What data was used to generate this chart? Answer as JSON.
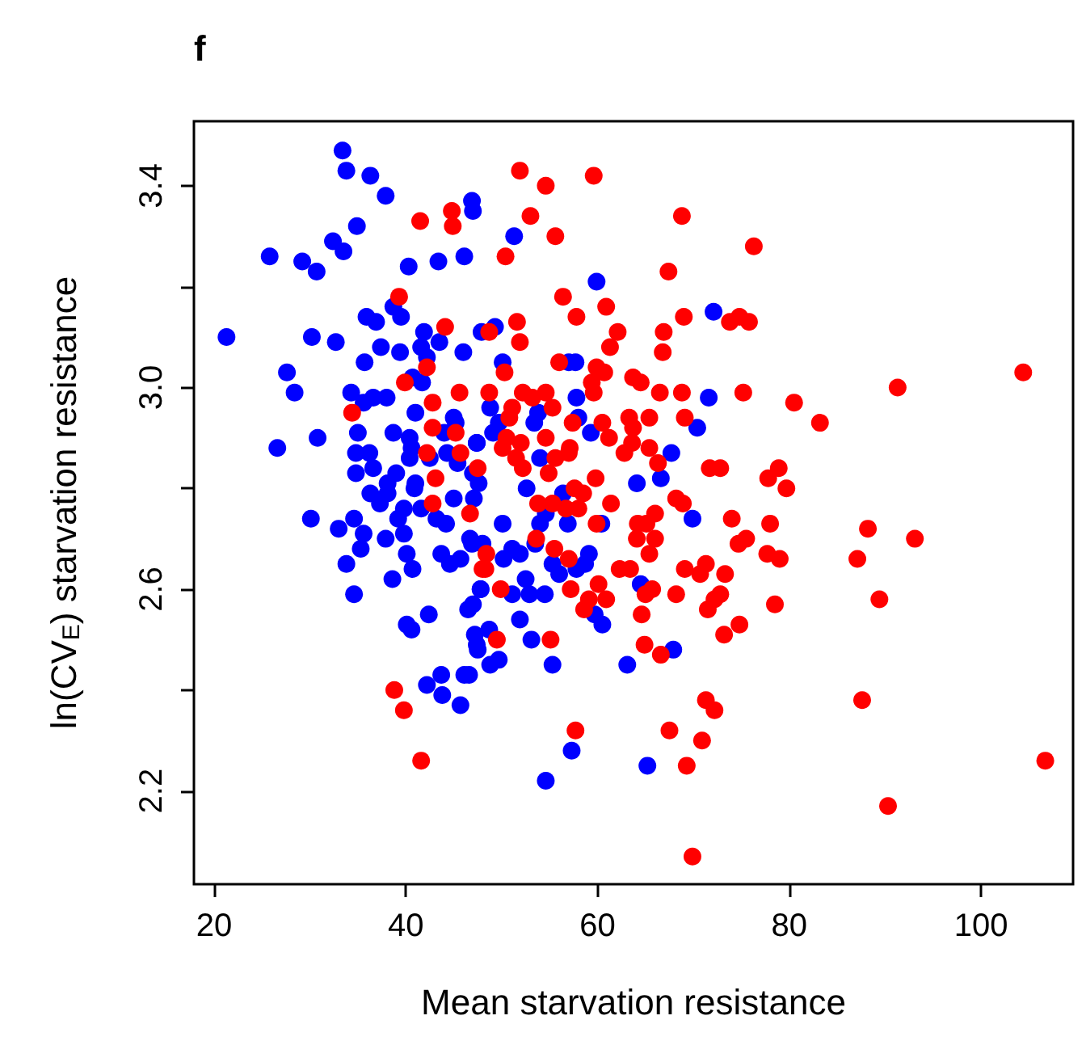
{
  "chart_data": {
    "type": "scatter",
    "title": "f",
    "xlabel": "Mean starvation resistance",
    "ylabel": "ln(CV$_{E}$) starvation resistance",
    "xlim": [
      17.9,
      109.6
    ],
    "ylim": [
      2.015,
      3.528
    ],
    "xticks": [
      20,
      40,
      60,
      80,
      100
    ],
    "yticks": [
      2.2,
      {
        "value": 2.4,
        "label": null
      },
      2.6,
      {
        "value": 2.8,
        "label": null
      },
      {
        "value": 3,
        "label": "3.0"
      },
      {
        "value": 3.2,
        "label": null
      },
      3.4
    ],
    "grid": false,
    "marker": "circle",
    "series": [
      {
        "color": "#0000ff",
        "x": [
          33.4,
          33.8,
          36.3,
          37.9,
          46.9,
          47.0,
          34.9,
          32.4,
          33.5,
          25.8,
          29.2,
          30.7,
          40.3,
          43.4,
          46.1,
          21.3,
          30.2,
          32.7,
          35.9,
          36.9,
          39.5,
          38.7,
          37.4,
          39.4,
          35.7,
          41.9,
          41.6,
          43.5,
          42.2,
          46.0,
          47.9,
          27.6,
          28.4,
          34.3,
          35.6,
          36.6,
          38.0,
          40.7,
          41.7,
          41.0,
          35.0,
          38.7,
          26.6,
          30.8,
          40.4,
          40.6,
          45.0,
          45.2,
          47.4,
          44.0,
          34.8,
          36.2,
          40.4,
          42.5,
          44.3,
          45.4,
          34.8,
          36.6,
          39.0,
          47.0,
          41.0,
          38.1,
          51.3,
          59.9,
          72.1,
          49.3,
          50.1,
          57.0,
          57.7,
          57.8,
          71.6,
          48.8,
          53.8,
          53.4,
          49.7,
          49.1,
          58.0,
          59.3,
          70.4,
          47.4,
          54.0,
          67.7,
          66.6,
          64.1,
          47.6,
          52.6,
          56.4,
          54.6,
          54.0,
          56.9,
          60.4,
          69.9,
          50.1,
          48.0,
          46.9,
          51.1,
          51.9,
          50.2,
          53.5,
          55.3,
          56.0,
          57.8,
          59.1,
          58.7,
          52.5,
          47.8,
          51.1,
          52.9,
          54.5,
          47.0,
          64.5,
          59.7,
          60.5,
          51.9,
          48.7,
          47.4,
          53.1,
          49.7,
          48.8,
          55.3,
          63.1,
          67.9,
          46.6,
          57.3,
          65.2,
          54.6,
          30.1,
          33.0,
          34.6,
          35.6,
          35.3,
          33.8,
          37.9,
          39.8,
          40.1,
          39.2,
          38.6,
          40.7,
          34.6,
          36.3,
          37.3,
          38.1,
          39.8,
          41.6,
          40.9,
          43.2,
          44.2,
          45.0,
          47.1,
          43.7,
          44.6,
          45.7,
          46.7,
          47.8,
          46.5,
          42.4,
          40.1,
          40.6,
          47.2,
          47.5,
          46.1,
          43.7,
          42.2,
          43.8,
          45.7
        ],
        "values": [
          3.47,
          3.43,
          3.42,
          3.38,
          3.37,
          3.35,
          3.32,
          3.29,
          3.27,
          3.26,
          3.25,
          3.23,
          3.24,
          3.25,
          3.26,
          3.1,
          3.1,
          3.09,
          3.14,
          3.13,
          3.14,
          3.16,
          3.08,
          3.07,
          3.05,
          3.11,
          3.08,
          3.09,
          3.06,
          3.07,
          3.11,
          3.03,
          2.99,
          2.99,
          2.97,
          2.98,
          2.98,
          3.02,
          3.01,
          2.95,
          2.91,
          2.91,
          2.88,
          2.9,
          2.9,
          2.88,
          2.94,
          2.93,
          2.89,
          2.91,
          2.87,
          2.87,
          2.86,
          2.86,
          2.87,
          2.85,
          2.83,
          2.84,
          2.83,
          2.83,
          2.81,
          2.81,
          3.3,
          3.21,
          3.15,
          3.12,
          3.05,
          3.05,
          3.05,
          2.98,
          2.98,
          2.96,
          2.95,
          2.93,
          2.93,
          2.91,
          2.94,
          2.91,
          2.92,
          2.89,
          2.86,
          2.87,
          2.82,
          2.81,
          2.81,
          2.8,
          2.79,
          2.75,
          2.73,
          2.73,
          2.73,
          2.74,
          2.73,
          2.69,
          2.69,
          2.68,
          2.67,
          2.66,
          2.69,
          2.65,
          2.63,
          2.64,
          2.67,
          2.65,
          2.62,
          2.6,
          2.59,
          2.59,
          2.59,
          2.57,
          2.61,
          2.55,
          2.53,
          2.54,
          2.52,
          2.49,
          2.5,
          2.46,
          2.45,
          2.45,
          2.45,
          2.48,
          2.43,
          2.28,
          2.25,
          2.22,
          2.74,
          2.72,
          2.74,
          2.71,
          2.68,
          2.65,
          2.7,
          2.71,
          2.67,
          2.74,
          2.62,
          2.64,
          2.59,
          2.79,
          2.77,
          2.79,
          2.76,
          2.76,
          2.8,
          2.74,
          2.73,
          2.78,
          2.78,
          2.67,
          2.65,
          2.66,
          2.7,
          2.6,
          2.56,
          2.55,
          2.53,
          2.52,
          2.51,
          2.48,
          2.43,
          2.43,
          2.41,
          2.39,
          2.37
        ]
      },
      {
        "color": "#ff0000",
        "x": [
          41.5,
          44.8,
          44.9,
          39.3,
          44.1,
          42.2,
          39.9,
          45.6,
          42.8,
          34.4,
          42.8,
          45.2,
          42.2,
          45.7,
          43.1,
          47.5,
          51.9,
          54.6,
          59.6,
          53.0,
          55.6,
          50.4,
          68.8,
          76.3,
          67.4,
          56.4,
          60.9,
          57.8,
          69.0,
          73.8,
          74.8,
          75.8,
          51.6,
          51.9,
          62.1,
          61.3,
          66.9,
          66.8,
          48.7,
          50.3,
          56.0,
          59.9,
          60.7,
          59.4,
          59.6,
          63.7,
          64.5,
          48.7,
          52.2,
          53.2,
          54.6,
          55.3,
          51.1,
          50.8,
          57.4,
          60.5,
          63.3,
          65.4,
          66.5,
          68.8,
          69.1,
          75.2,
          50.5,
          54.6,
          52.0,
          50.1,
          57.1,
          61.2,
          63.7,
          63.6,
          65.4,
          51.5,
          55.6,
          57.0,
          62.8,
          66.3,
          52.2,
          54.9,
          59.8,
          71.7,
          72.8,
          77.8,
          57.6,
          104.4,
          91.3,
          80.5,
          83.2,
          78.9,
          79.7,
          78.0,
          88.2,
          93.1,
          77.7,
          79.0,
          87.1,
          89.4,
          78.5,
          87.6,
          106.7,
          90.3,
          61.4,
          68.2,
          68.9,
          74.0,
          64.2,
          66.0,
          65.1,
          66.0,
          64.1,
          65.4,
          74.7,
          75.5,
          59.9,
          53.8,
          55.3,
          56.7,
          58.0,
          58.5,
          53.6,
          55.5,
          57.0,
          48.3,
          48.4,
          49.9,
          57.2,
          60.1,
          60.9,
          58.6,
          59.1,
          62.3,
          63.4,
          65.7,
          65.0,
          64.6,
          68.2,
          69.1,
          70.7,
          71.3,
          73.3,
          71.5,
          72.2,
          72.8,
          74.8,
          73.2,
          49.5,
          55.1,
          64.9,
          66.6,
          71.3,
          72.2,
          57.7,
          67.5,
          70.9,
          69.3,
          69.9,
          42.8,
          46.7,
          48.0,
          38.8,
          39.8,
          41.6
        ],
        "values": [
          3.33,
          3.35,
          3.32,
          3.18,
          3.12,
          3.04,
          3.01,
          2.99,
          2.97,
          2.95,
          2.92,
          2.91,
          2.87,
          2.87,
          2.82,
          2.84,
          3.43,
          3.4,
          3.42,
          3.34,
          3.3,
          3.26,
          3.34,
          3.28,
          3.23,
          3.18,
          3.16,
          3.14,
          3.14,
          3.13,
          3.14,
          3.13,
          3.13,
          3.09,
          3.11,
          3.08,
          3.11,
          3.07,
          3.11,
          3.03,
          3.05,
          3.04,
          3.03,
          3.01,
          2.99,
          3.02,
          3.01,
          2.99,
          2.99,
          2.98,
          2.99,
          2.96,
          2.96,
          2.94,
          2.93,
          2.93,
          2.94,
          2.94,
          2.99,
          2.99,
          2.94,
          2.99,
          2.9,
          2.9,
          2.89,
          2.88,
          2.88,
          2.9,
          2.92,
          2.89,
          2.88,
          2.86,
          2.86,
          2.87,
          2.87,
          2.85,
          2.84,
          2.83,
          2.82,
          2.84,
          2.84,
          2.82,
          2.8,
          3.03,
          3.0,
          2.97,
          2.93,
          2.84,
          2.8,
          2.73,
          2.72,
          2.7,
          2.67,
          2.66,
          2.66,
          2.58,
          2.57,
          2.38,
          2.26,
          2.17,
          2.77,
          2.78,
          2.77,
          2.74,
          2.73,
          2.75,
          2.73,
          2.7,
          2.7,
          2.67,
          2.69,
          2.7,
          2.73,
          2.77,
          2.77,
          2.76,
          2.76,
          2.79,
          2.7,
          2.68,
          2.66,
          2.64,
          2.67,
          2.6,
          2.6,
          2.61,
          2.58,
          2.56,
          2.58,
          2.64,
          2.64,
          2.6,
          2.59,
          2.55,
          2.59,
          2.64,
          2.63,
          2.65,
          2.63,
          2.56,
          2.58,
          2.59,
          2.53,
          2.51,
          2.5,
          2.5,
          2.49,
          2.47,
          2.38,
          2.36,
          2.32,
          2.32,
          2.3,
          2.25,
          2.07,
          2.77,
          2.75,
          2.64,
          2.4,
          2.36,
          2.26
        ]
      }
    ]
  }
}
